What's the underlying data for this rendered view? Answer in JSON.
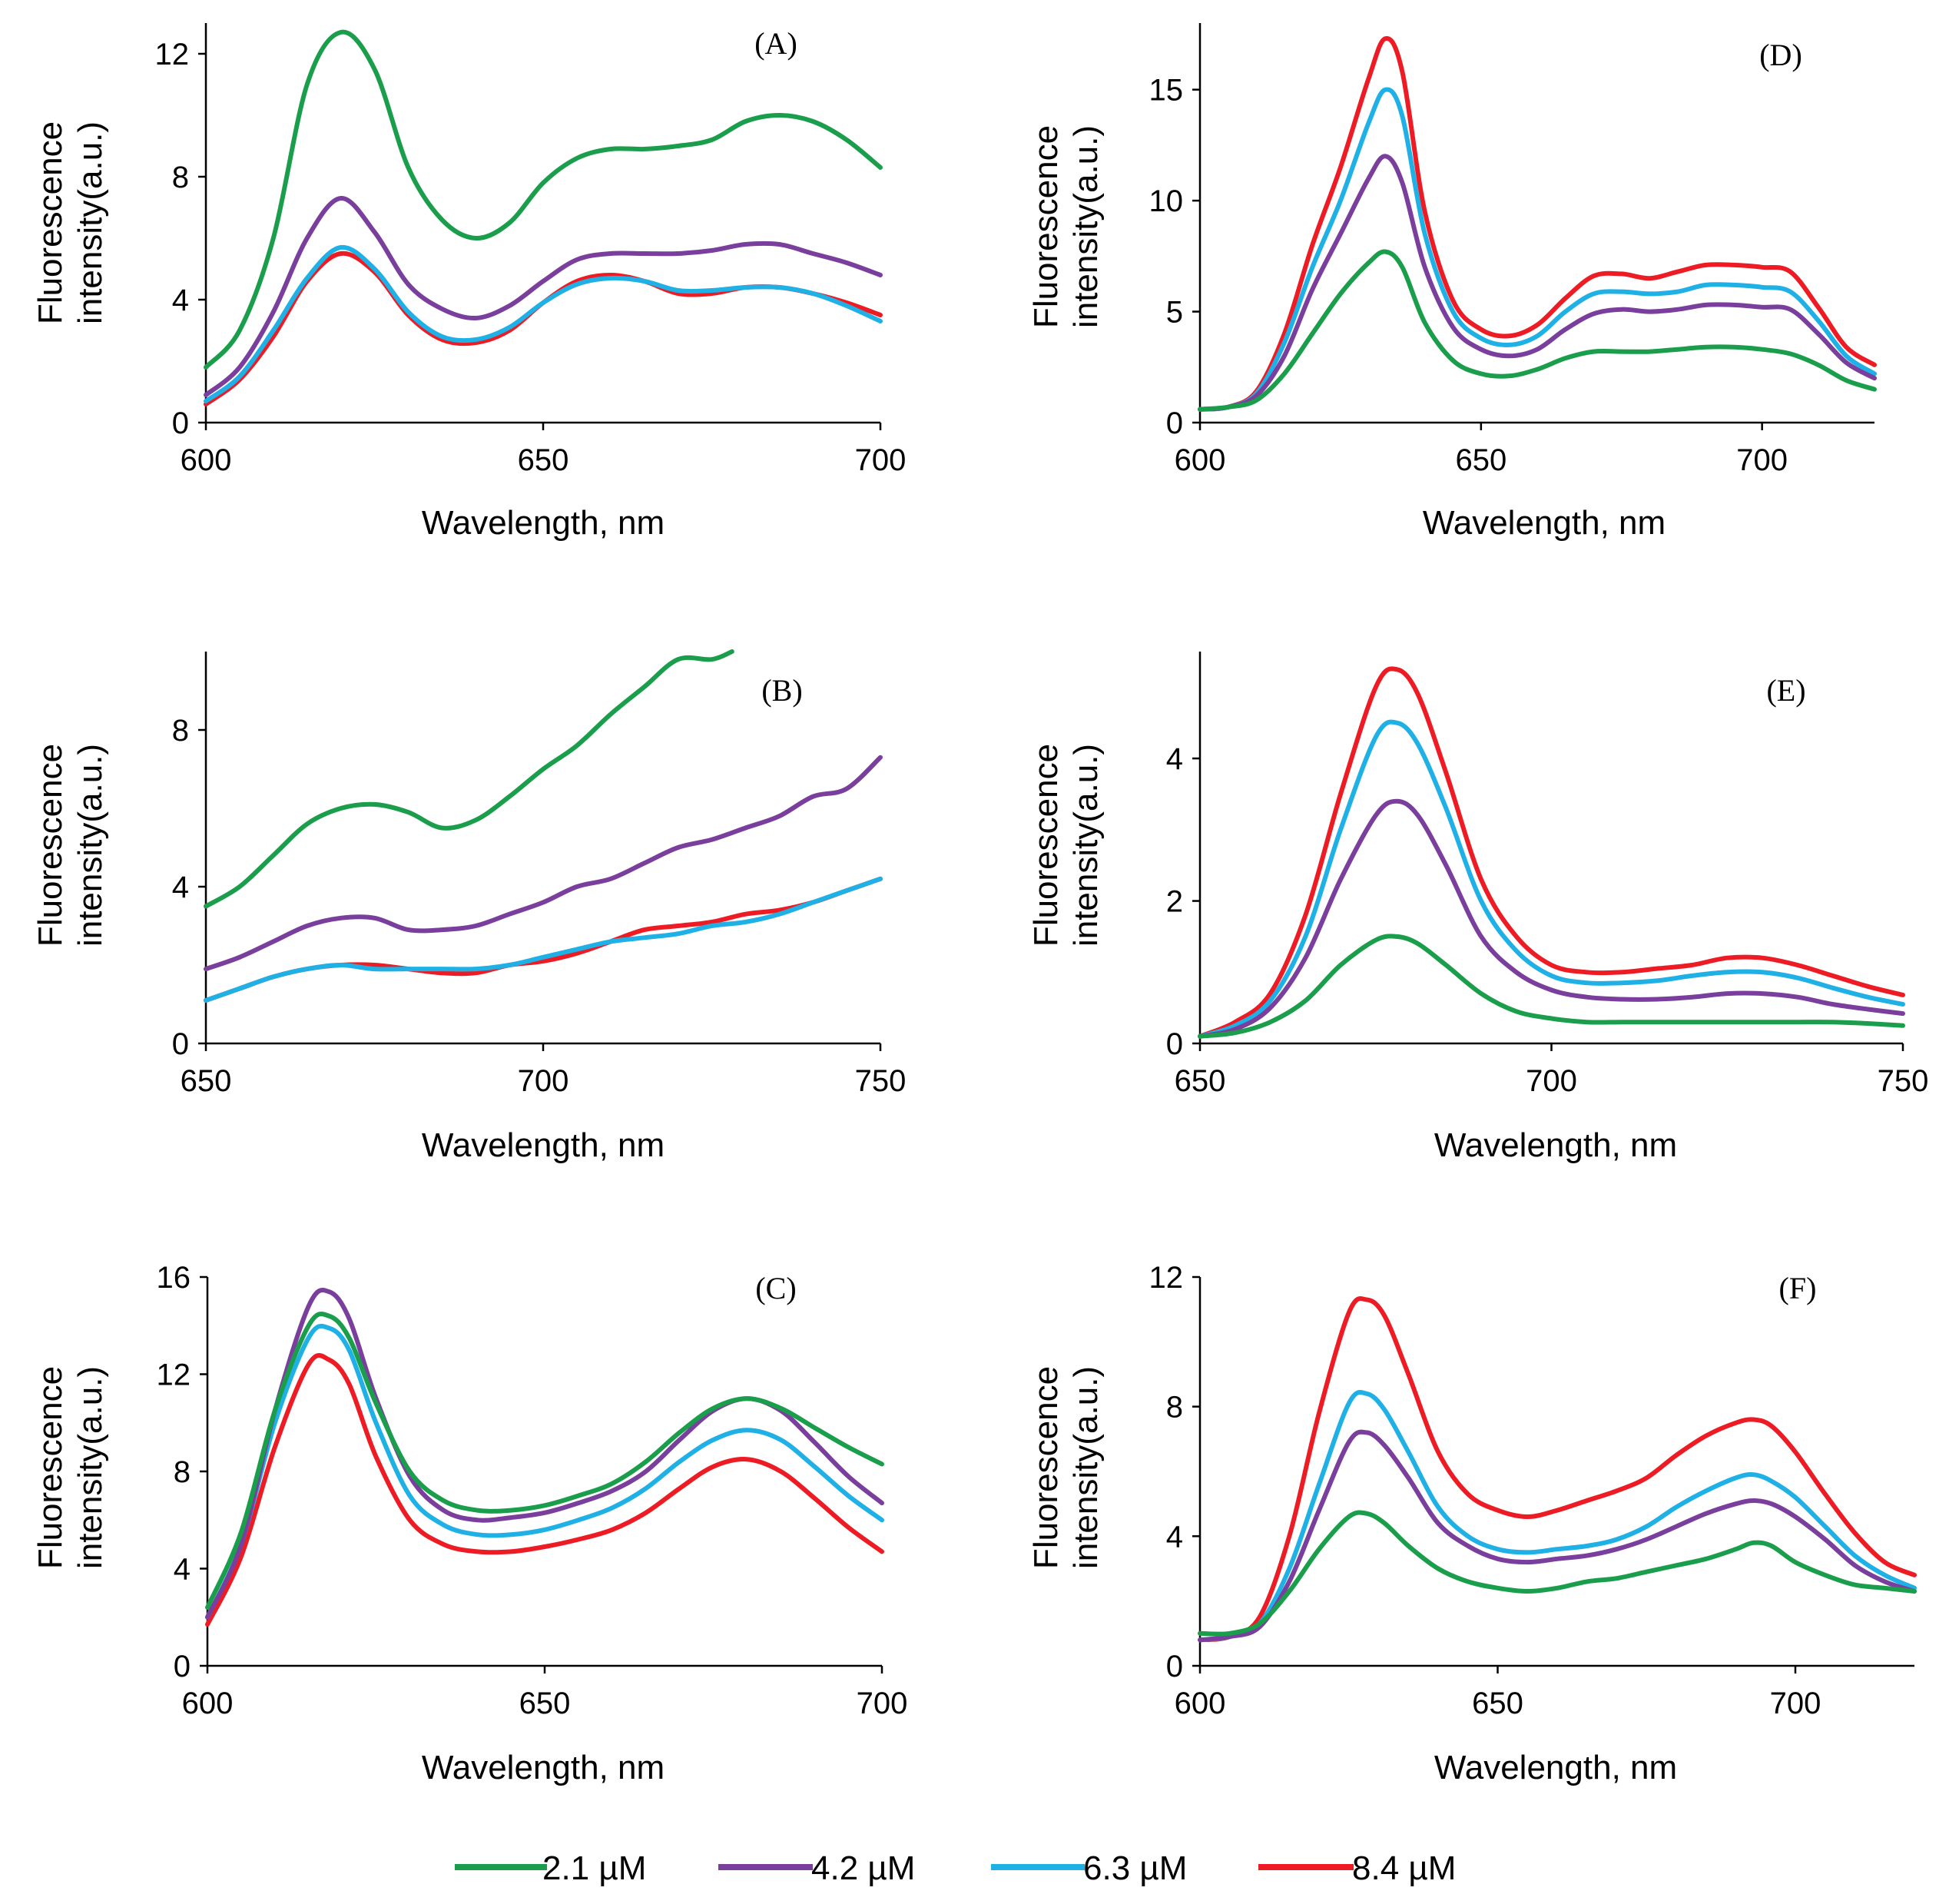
{
  "legend": [
    {
      "label": "2.1 µM",
      "color": "#1a9e4b"
    },
    {
      "label": "4.2 µM",
      "color": "#7a3f9c"
    },
    {
      "label": "6.3 µM",
      "color": "#1fb0e6"
    },
    {
      "label": "8.4 µM",
      "color": "#ed1c24"
    }
  ],
  "chart_data": [
    {
      "id": "A",
      "type": "line",
      "panel_label": "(A)",
      "xlabel": "Wavelength, nm",
      "ylabel_line1": "Fluorescence",
      "ylabel_line2": "intensity(a.u.)",
      "xlim": [
        600,
        700
      ],
      "ylim": [
        0,
        13
      ],
      "xticks": [
        600,
        650,
        700
      ],
      "yticks": [
        0,
        4,
        8,
        12
      ],
      "x": [
        600,
        605,
        610,
        615,
        620,
        625,
        630,
        635,
        640,
        645,
        650,
        655,
        660,
        665,
        670,
        675,
        680,
        685,
        690,
        695,
        700
      ],
      "series": [
        {
          "name": "2.1 µM",
          "values": [
            1.8,
            3.0,
            6.0,
            11.0,
            12.7,
            11.5,
            8.3,
            6.6,
            6.0,
            6.5,
            7.8,
            8.6,
            8.9,
            8.9,
            9.0,
            9.2,
            9.8,
            10.0,
            9.8,
            9.2,
            8.3
          ]
        },
        {
          "name": "4.2 µM",
          "values": [
            0.9,
            1.8,
            3.6,
            6.0,
            7.3,
            6.2,
            4.5,
            3.7,
            3.4,
            3.8,
            4.6,
            5.3,
            5.5,
            5.5,
            5.5,
            5.6,
            5.8,
            5.8,
            5.5,
            5.2,
            4.8
          ]
        },
        {
          "name": "6.3 µM",
          "values": [
            0.7,
            1.5,
            3.0,
            4.7,
            5.7,
            5.0,
            3.6,
            2.8,
            2.7,
            3.1,
            3.9,
            4.5,
            4.7,
            4.6,
            4.3,
            4.3,
            4.4,
            4.4,
            4.2,
            3.8,
            3.3
          ]
        },
        {
          "name": "8.4 µM",
          "values": [
            0.6,
            1.4,
            2.8,
            4.6,
            5.5,
            4.9,
            3.5,
            2.7,
            2.6,
            3.0,
            3.9,
            4.6,
            4.8,
            4.6,
            4.2,
            4.2,
            4.4,
            4.4,
            4.2,
            3.9,
            3.5
          ]
        }
      ]
    },
    {
      "id": "D",
      "type": "line",
      "panel_label": "(D)",
      "xlabel": "Wavelength, nm",
      "ylabel_line1": "Fluorescence",
      "ylabel_line2": "intensity(a.u.)",
      "xlim": [
        600,
        720
      ],
      "ylim": [
        0,
        18
      ],
      "xticks": [
        600,
        650,
        700
      ],
      "yticks": [
        0,
        5,
        10,
        15
      ],
      "x": [
        600,
        605,
        610,
        615,
        620,
        625,
        630,
        633,
        636,
        640,
        645,
        650,
        655,
        660,
        665,
        670,
        675,
        680,
        685,
        690,
        695,
        700,
        705,
        710,
        715,
        720
      ],
      "series": [
        {
          "name": "2.1 µM",
          "values": [
            0.6,
            0.7,
            1.0,
            2.2,
            4.0,
            5.8,
            7.2,
            7.7,
            7.0,
            4.5,
            2.8,
            2.2,
            2.1,
            2.4,
            2.9,
            3.2,
            3.2,
            3.2,
            3.3,
            3.4,
            3.4,
            3.3,
            3.1,
            2.6,
            1.9,
            1.5
          ]
        },
        {
          "name": "4.2 µM",
          "values": [
            0.6,
            0.7,
            1.2,
            3.0,
            6.0,
            8.5,
            11.0,
            12.0,
            10.8,
            7.0,
            4.3,
            3.3,
            3.0,
            3.3,
            4.2,
            4.9,
            5.1,
            5.0,
            5.1,
            5.3,
            5.3,
            5.2,
            5.1,
            4.0,
            2.7,
            2.0
          ]
        },
        {
          "name": "6.3 µM",
          "values": [
            0.6,
            0.7,
            1.3,
            3.6,
            7.0,
            10.0,
            13.5,
            15.0,
            13.8,
            8.5,
            5.0,
            3.8,
            3.5,
            3.9,
            5.0,
            5.8,
            5.9,
            5.8,
            5.9,
            6.2,
            6.2,
            6.1,
            5.9,
            4.6,
            3.0,
            2.2
          ]
        },
        {
          "name": "8.4 µM",
          "values": [
            0.6,
            0.7,
            1.4,
            4.0,
            8.0,
            11.5,
            15.5,
            17.3,
            15.8,
            9.5,
            5.5,
            4.2,
            3.9,
            4.4,
            5.6,
            6.6,
            6.7,
            6.5,
            6.8,
            7.1,
            7.1,
            7.0,
            6.8,
            5.2,
            3.4,
            2.6
          ]
        }
      ]
    },
    {
      "id": "B",
      "type": "line",
      "panel_label": "(B)",
      "xlabel": "Wavelength, nm",
      "ylabel_line1": "Fluorescence",
      "ylabel_line2": "intensity(a.u.)",
      "xlim": [
        650,
        750
      ],
      "ylim": [
        0,
        10
      ],
      "xticks": [
        650,
        700,
        750
      ],
      "yticks": [
        0,
        4,
        8
      ],
      "series": [
        {
          "name": "2.1 µM",
          "x": [
            650,
            655,
            660,
            665,
            670,
            675,
            680,
            685,
            690,
            695,
            700,
            705,
            710,
            715,
            720,
            725,
            728
          ],
          "values": [
            3.5,
            4.0,
            4.8,
            5.6,
            6.0,
            6.1,
            5.9,
            5.5,
            5.7,
            6.3,
            7.0,
            7.6,
            8.4,
            9.1,
            9.8,
            9.8,
            10.0
          ]
        },
        {
          "name": "4.2 µM",
          "x": [
            650,
            655,
            660,
            665,
            670,
            675,
            680,
            685,
            690,
            695,
            700,
            705,
            710,
            715,
            720,
            725,
            730,
            735,
            740,
            745,
            750
          ],
          "values": [
            1.9,
            2.2,
            2.6,
            3.0,
            3.2,
            3.2,
            2.9,
            2.9,
            3.0,
            3.3,
            3.6,
            4.0,
            4.2,
            4.6,
            5.0,
            5.2,
            5.5,
            5.8,
            6.3,
            6.5,
            7.3
          ]
        },
        {
          "name": "6.3 µM",
          "x": [
            650,
            655,
            660,
            665,
            670,
            675,
            680,
            685,
            690,
            695,
            700,
            705,
            710,
            715,
            720,
            725,
            730,
            735,
            740,
            745,
            750
          ],
          "values": [
            1.1,
            1.4,
            1.7,
            1.9,
            2.0,
            1.9,
            1.9,
            1.9,
            1.9,
            2.0,
            2.2,
            2.4,
            2.6,
            2.7,
            2.8,
            3.0,
            3.1,
            3.3,
            3.6,
            3.9,
            4.2
          ]
        },
        {
          "name": "8.4 µM",
          "x": [
            650,
            655,
            660,
            665,
            670,
            675,
            680,
            685,
            690,
            695,
            700,
            705,
            710,
            715,
            720,
            725,
            730,
            735,
            740,
            745,
            750
          ],
          "values": [
            1.1,
            1.4,
            1.7,
            1.9,
            2.0,
            2.0,
            1.9,
            1.8,
            1.8,
            2.0,
            2.1,
            2.3,
            2.6,
            2.9,
            3.0,
            3.1,
            3.3,
            3.4,
            3.6,
            3.9,
            4.2
          ]
        }
      ]
    },
    {
      "id": "E",
      "type": "line",
      "panel_label": "(E)",
      "xlabel": "Wavelength, nm",
      "ylabel_line1": "Fluorescence",
      "ylabel_line2": "intensity(a.u.)",
      "xlim": [
        650,
        750
      ],
      "ylim": [
        0,
        5.5
      ],
      "xticks": [
        650,
        700,
        750
      ],
      "yticks": [
        0,
        2,
        4
      ],
      "x": [
        650,
        655,
        660,
        665,
        670,
        675,
        678,
        681,
        685,
        690,
        695,
        700,
        705,
        710,
        715,
        720,
        725,
        730,
        735,
        740,
        745,
        750
      ],
      "series": [
        {
          "name": "2.1 µM",
          "values": [
            0.1,
            0.15,
            0.3,
            0.6,
            1.1,
            1.45,
            1.5,
            1.4,
            1.1,
            0.7,
            0.45,
            0.35,
            0.3,
            0.3,
            0.3,
            0.3,
            0.3,
            0.3,
            0.3,
            0.3,
            0.28,
            0.25
          ]
        },
        {
          "name": "4.2 µM",
          "values": [
            0.1,
            0.2,
            0.5,
            1.2,
            2.3,
            3.2,
            3.4,
            3.2,
            2.5,
            1.5,
            1.0,
            0.75,
            0.65,
            0.62,
            0.62,
            0.65,
            0.7,
            0.7,
            0.65,
            0.55,
            0.48,
            0.42
          ]
        },
        {
          "name": "6.3 µM",
          "values": [
            0.1,
            0.25,
            0.6,
            1.5,
            3.0,
            4.3,
            4.5,
            4.2,
            3.3,
            2.0,
            1.3,
            0.95,
            0.85,
            0.85,
            0.88,
            0.95,
            1.0,
            1.0,
            0.92,
            0.78,
            0.65,
            0.55
          ]
        },
        {
          "name": "8.4 µM",
          "values": [
            0.1,
            0.3,
            0.7,
            1.8,
            3.5,
            5.0,
            5.25,
            4.9,
            3.8,
            2.3,
            1.5,
            1.1,
            1.0,
            1.0,
            1.05,
            1.1,
            1.2,
            1.2,
            1.1,
            0.95,
            0.8,
            0.68
          ]
        }
      ]
    },
    {
      "id": "C",
      "type": "line",
      "panel_label": "(C)",
      "xlabel": "Wavelength, nm",
      "ylabel_line1": "Fluorescence",
      "ylabel_line2": "intensity(a.u.)",
      "xlim": [
        600,
        700
      ],
      "ylim": [
        0,
        16
      ],
      "xticks": [
        600,
        650,
        700
      ],
      "yticks": [
        0,
        4,
        8,
        12,
        16
      ],
      "x": [
        600,
        605,
        610,
        615,
        618,
        621,
        625,
        630,
        635,
        640,
        645,
        650,
        655,
        660,
        665,
        670,
        675,
        680,
        685,
        690,
        695,
        700
      ],
      "series": [
        {
          "name": "2.1 µM",
          "values": [
            2.4,
            5.5,
            10.5,
            14.0,
            14.4,
            13.5,
            10.8,
            8.0,
            6.8,
            6.4,
            6.4,
            6.6,
            7.0,
            7.5,
            8.4,
            9.6,
            10.6,
            11.0,
            10.6,
            9.8,
            9.0,
            8.3
          ]
        },
        {
          "name": "4.2 µM",
          "values": [
            2.0,
            5.0,
            10.5,
            14.8,
            15.4,
            14.3,
            11.0,
            7.8,
            6.4,
            6.0,
            6.1,
            6.3,
            6.7,
            7.2,
            8.0,
            9.3,
            10.5,
            11.0,
            10.5,
            9.2,
            7.8,
            6.7
          ]
        },
        {
          "name": "6.3 µM",
          "values": [
            2.0,
            5.0,
            10.0,
            13.5,
            13.9,
            13.0,
            10.0,
            7.0,
            5.8,
            5.4,
            5.4,
            5.6,
            6.0,
            6.5,
            7.3,
            8.4,
            9.3,
            9.7,
            9.3,
            8.2,
            7.0,
            6.0
          ]
        },
        {
          "name": "8.4 µM",
          "values": [
            1.7,
            4.5,
            9.0,
            12.4,
            12.6,
            11.6,
            8.6,
            6.0,
            5.0,
            4.7,
            4.7,
            4.9,
            5.2,
            5.6,
            6.3,
            7.3,
            8.2,
            8.5,
            8.0,
            6.9,
            5.7,
            4.7
          ]
        }
      ]
    },
    {
      "id": "F",
      "type": "line",
      "panel_label": "(F)",
      "xlabel": "Wavelength, nm",
      "ylabel_line1": "Fluorescence",
      "ylabel_line2": "intensity(a.u.)",
      "xlim": [
        600,
        720
      ],
      "ylim": [
        0,
        12
      ],
      "xticks": [
        600,
        650,
        700
      ],
      "yticks": [
        0,
        4,
        8,
        12
      ],
      "x": [
        600,
        605,
        610,
        615,
        620,
        625,
        628,
        631,
        635,
        640,
        645,
        650,
        655,
        660,
        665,
        670,
        675,
        680,
        685,
        690,
        693,
        696,
        700,
        705,
        710,
        715,
        720
      ],
      "series": [
        {
          "name": "2.1 µM",
          "values": [
            1.0,
            1.0,
            1.3,
            2.3,
            3.6,
            4.6,
            4.7,
            4.4,
            3.7,
            3.0,
            2.6,
            2.4,
            2.3,
            2.4,
            2.6,
            2.7,
            2.9,
            3.1,
            3.3,
            3.6,
            3.8,
            3.7,
            3.2,
            2.8,
            2.5,
            2.4,
            2.3
          ]
        },
        {
          "name": "4.2 µM",
          "values": [
            0.8,
            0.9,
            1.2,
            2.6,
            4.8,
            6.9,
            7.2,
            6.8,
            5.8,
            4.4,
            3.7,
            3.3,
            3.2,
            3.3,
            3.4,
            3.6,
            3.9,
            4.3,
            4.7,
            5.0,
            5.1,
            5.0,
            4.6,
            3.9,
            3.1,
            2.6,
            2.3
          ]
        },
        {
          "name": "6.3 µM",
          "values": [
            0.8,
            0.9,
            1.3,
            3.0,
            5.6,
            8.1,
            8.4,
            7.9,
            6.6,
            4.9,
            4.0,
            3.6,
            3.5,
            3.6,
            3.7,
            3.9,
            4.3,
            4.9,
            5.4,
            5.8,
            5.9,
            5.7,
            5.2,
            4.3,
            3.4,
            2.8,
            2.4
          ]
        },
        {
          "name": "8.4 µM",
          "values": [
            0.8,
            0.9,
            1.5,
            4.0,
            7.8,
            10.9,
            11.3,
            10.8,
            9.0,
            6.6,
            5.3,
            4.8,
            4.6,
            4.8,
            5.1,
            5.4,
            5.8,
            6.5,
            7.1,
            7.5,
            7.6,
            7.4,
            6.6,
            5.3,
            4.1,
            3.2,
            2.8
          ]
        }
      ]
    }
  ]
}
